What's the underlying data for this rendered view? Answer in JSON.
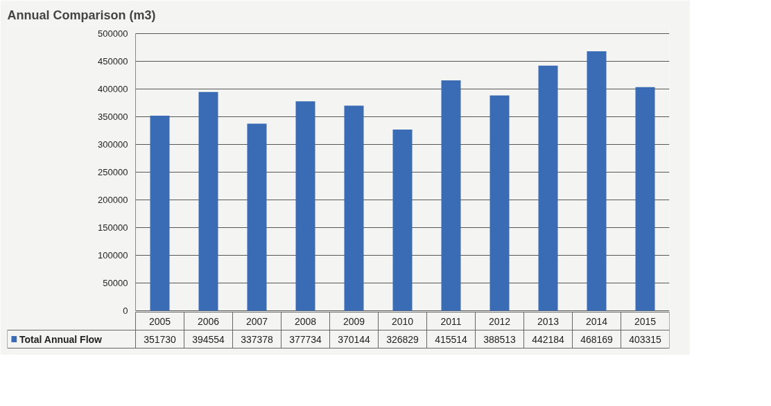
{
  "chart_data": {
    "type": "bar",
    "title": "Annual Comparison (m3)",
    "categories": [
      "2005",
      "2006",
      "2007",
      "2008",
      "2009",
      "2010",
      "2011",
      "2012",
      "2013",
      "2014",
      "2015"
    ],
    "series": [
      {
        "name": "Total Annual Flow",
        "color": "#3a6bb5",
        "values": [
          351730,
          394554,
          337378,
          377734,
          370144,
          326829,
          415514,
          388513,
          442184,
          468169,
          403315
        ]
      }
    ],
    "ylim": [
      0,
      500000
    ],
    "yticks": [
      0,
      50000,
      100000,
      150000,
      200000,
      250000,
      300000,
      350000,
      400000,
      450000,
      500000
    ],
    "grid": "y",
    "legend": "bottom",
    "data_labels": true
  }
}
